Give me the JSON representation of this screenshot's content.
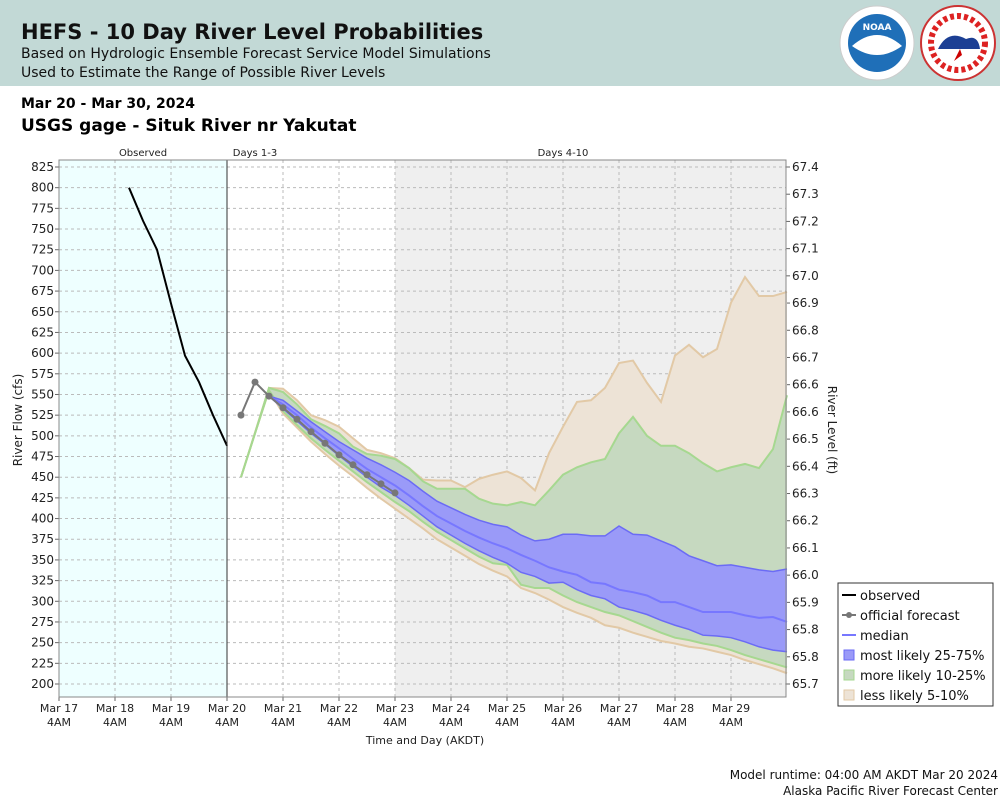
{
  "header": {
    "title": "HEFS - 10 Day River Level Probabilities",
    "line1": "Based on Hydrologic Ensemble Forecast Service Model Simulations",
    "line2": "Used to Estimate the Range of Possible River Levels",
    "noaa_logo": "NOAA",
    "nws_logo": "NATIONAL WEATHER SERVICE"
  },
  "date_range": "Mar 20 - Mar 30, 2024",
  "gage": "USGS gage - Situk River nr Yakutat",
  "footer": {
    "runtime": "Model runtime: 04:00 AM AKDT Mar 20 2024",
    "center": "Alaska Pacific River Forecast Center"
  },
  "chart_data": {
    "type": "area",
    "x_units": "hours since Mar 17 4AM AKDT",
    "xlabel": "Time and Day (AKDT)",
    "ylabel": "River Flow (cfs)",
    "ylabel_right": "River Level (ft)",
    "ylim": [
      200,
      825
    ],
    "ylim_right": [
      65.7,
      67.4
    ],
    "yticks": [
      825,
      800,
      775,
      750,
      725,
      700,
      675,
      650,
      625,
      600,
      575,
      550,
      525,
      500,
      475,
      450,
      425,
      400,
      375,
      350,
      325,
      300,
      275,
      250,
      225,
      200
    ],
    "yticks_right": [
      "67.4",
      "67.3",
      "67.2",
      "67.1",
      "67.0",
      "66.9",
      "66.8",
      "66.7",
      "66.6",
      "66.6",
      "66.5",
      "66.4",
      "66.3",
      "66.2",
      "66.1",
      "66.0",
      "65.9",
      "65.8",
      "65.8",
      "65.7"
    ],
    "xticks": [
      {
        "d": "Mar 17",
        "t": "4AM"
      },
      {
        "d": "Mar 18",
        "t": "4AM"
      },
      {
        "d": "Mar 19",
        "t": "4AM"
      },
      {
        "d": "Mar 20",
        "t": "4AM"
      },
      {
        "d": "Mar 21",
        "t": "4AM"
      },
      {
        "d": "Mar 22",
        "t": "4AM"
      },
      {
        "d": "Mar 23",
        "t": "4AM"
      },
      {
        "d": "Mar 24",
        "t": "4AM"
      },
      {
        "d": "Mar 25",
        "t": "4AM"
      },
      {
        "d": "Mar 26",
        "t": "4AM"
      },
      {
        "d": "Mar 27",
        "t": "4AM"
      },
      {
        "d": "Mar 28",
        "t": "4AM"
      },
      {
        "d": "Mar 29",
        "t": "4AM"
      }
    ],
    "period_labels": [
      "Observed",
      "Days 1-3",
      "Days 4-10"
    ],
    "legend": {
      "observed": "observed",
      "official": "official forecast",
      "median": "median",
      "p25_75": "most likely 25-75%",
      "p10_25": "more likely 10-25%",
      "p5_10": "less likely 5-10%"
    },
    "legend_position": "bottom-right",
    "colors": {
      "observed": "#000000",
      "official": "#777777",
      "median": "#7777ff",
      "blue": "#9a9af8",
      "green": "#c6d9c0",
      "tan": "#ede3d6",
      "tan_line": "#e2c9a6",
      "green_line": "#a6d890",
      "obs_bg": "#eeffff",
      "late_bg": "#efefef"
    },
    "observed": {
      "x_start": 30,
      "step": 6,
      "values": [
        800,
        760,
        725,
        660,
        597,
        565,
        525,
        488
      ]
    },
    "official": {
      "x_start": 72,
      "step": 6,
      "values": [
        null,
        525,
        565,
        548,
        534,
        520,
        505,
        491,
        477,
        465,
        453,
        442,
        431
      ]
    },
    "bands": {
      "x_start": 78,
      "step": 6,
      "p95": [
        450,
        504,
        558,
        557,
        543,
        525,
        519,
        511,
        497,
        483,
        479,
        473,
        461,
        447,
        446,
        446,
        438,
        448,
        453,
        457,
        449,
        434,
        479,
        511,
        541,
        543,
        558,
        588,
        591,
        564,
        541,
        597,
        610,
        595,
        605,
        661,
        692,
        669,
        669,
        674
      ],
      "p90": [
        450,
        503,
        558,
        553,
        538,
        520,
        512,
        503,
        487,
        478,
        476,
        472,
        461,
        445,
        436,
        436,
        436,
        424,
        418,
        416,
        420,
        416,
        434,
        453,
        462,
        468,
        472,
        503,
        523,
        500,
        488,
        488,
        479,
        467,
        457,
        462,
        466,
        461,
        484,
        549
      ],
      "p75": [
        null,
        null,
        548,
        543,
        530,
        517,
        505,
        493,
        483,
        473,
        465,
        456,
        446,
        433,
        421,
        413,
        405,
        398,
        393,
        390,
        380,
        373,
        375,
        381,
        381,
        379,
        379,
        391,
        381,
        380,
        373,
        366,
        355,
        349,
        343,
        344,
        341,
        338,
        336,
        339
      ],
      "median": [
        null,
        null,
        548,
        538,
        525,
        510,
        497,
        485,
        472,
        460,
        450,
        440,
        428,
        415,
        403,
        394,
        385,
        377,
        370,
        364,
        356,
        349,
        341,
        336,
        332,
        323,
        321,
        314,
        311,
        307,
        299,
        299,
        293,
        287,
        287,
        287,
        283,
        280,
        281,
        275
      ],
      "p25": [
        null,
        null,
        548,
        533,
        518,
        503,
        490,
        476,
        463,
        450,
        438,
        428,
        416,
        403,
        390,
        380,
        370,
        361,
        353,
        346,
        335,
        330,
        322,
        323,
        314,
        307,
        303,
        293,
        289,
        284,
        277,
        271,
        266,
        259,
        258,
        256,
        251,
        245,
        241,
        239
      ],
      "p10": [
        450,
        503,
        555,
        530,
        513,
        497,
        483,
        470,
        457,
        444,
        432,
        420,
        409,
        396,
        384,
        374,
        364,
        354,
        346,
        344,
        320,
        316,
        316,
        307,
        299,
        293,
        287,
        283,
        276,
        269,
        262,
        256,
        253,
        249,
        246,
        241,
        235,
        230,
        225,
        220
      ],
      "p5": [
        450,
        503,
        555,
        527,
        510,
        493,
        478,
        464,
        451,
        437,
        424,
        412,
        400,
        388,
        375,
        365,
        355,
        345,
        337,
        330,
        316,
        310,
        302,
        293,
        286,
        280,
        271,
        268,
        262,
        257,
        252,
        249,
        245,
        243,
        239,
        235,
        229,
        224,
        219,
        213
      ]
    }
  }
}
